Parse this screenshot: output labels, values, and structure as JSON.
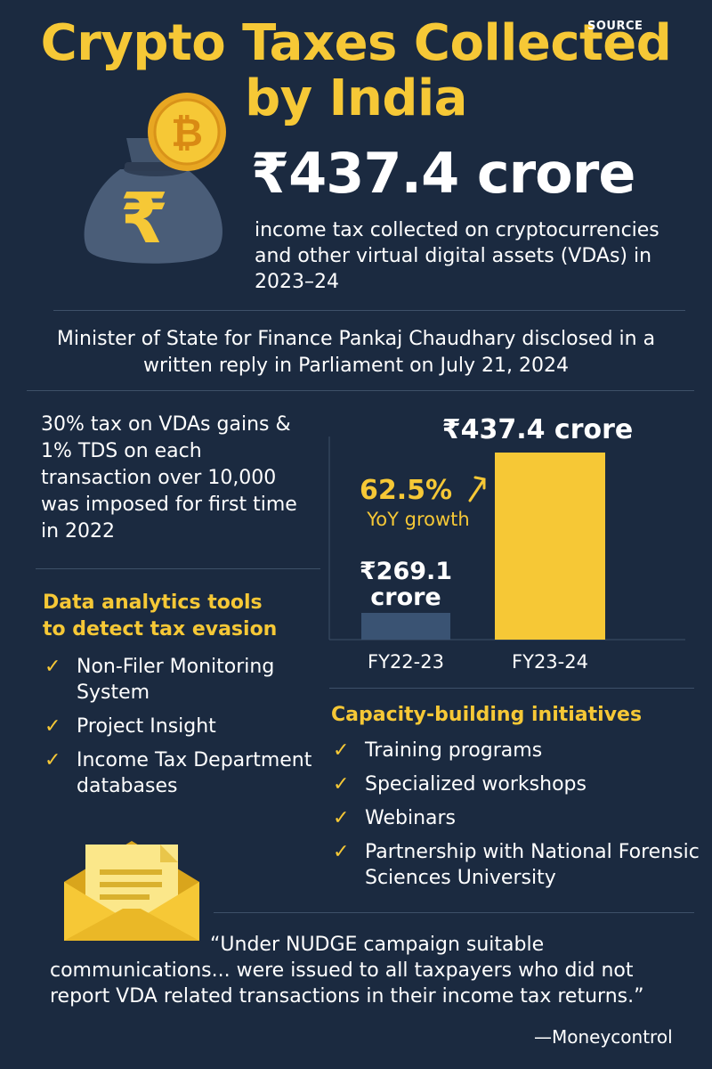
{
  "header": {
    "title_line1": "Crypto Taxes Collected",
    "title_line2": "by India",
    "source_tag": "SOURCE"
  },
  "headline": {
    "amount": "₹437.4 crore",
    "description": "income tax collected on cryptocurrencies and other virtual digital assets (VDAs) in 2023–24"
  },
  "minister_note": "Minister of State for Finance Pankaj Chaudhary disclosed in a written reply in Parliament on July 21, 2024",
  "tax_note": "30% tax on VDAs gains & 1% TDS on each transaction over 10,000 was imposed for first time in 2022",
  "analytics": {
    "heading_line1": "Data analytics tools",
    "heading_line2": "to detect tax evasion",
    "items": [
      "Non-Filer Monitoring System",
      "Project Insight",
      "Income Tax Department databases"
    ]
  },
  "capacity": {
    "heading": "Capacity-building initiatives",
    "items": [
      "Training programs",
      "Specialized workshops",
      "Webinars",
      "Partnership with National Forensic Sciences University"
    ]
  },
  "quote": {
    "text": "“Under NUDGE campaign suitable communications... were issued to all taxpayers who did not report VDA related transactions in their income tax returns.”",
    "source": "—Moneycontrol"
  },
  "icons": {
    "money_bag": "money-bag-rupee-icon",
    "coin": "bitcoin-coin-icon",
    "envelope": "envelope-letter-icon",
    "check": "check-icon",
    "growth_arrow": "arrow-up-right-icon"
  },
  "colors": {
    "background": "#1b2a40",
    "accent": "#f6c836",
    "bar_fy22": "#3a5373",
    "bar_fy23": "#f6c836"
  },
  "chart_data": {
    "type": "bar",
    "title": "",
    "xlabel": "",
    "ylabel": "",
    "categories": [
      "FY22-23",
      "FY23-24"
    ],
    "values": [
      269.1,
      437.4
    ],
    "unit": "crore",
    "data_labels": [
      "₹269.1 crore",
      "₹437.4 crore"
    ],
    "annotation": {
      "value": "62.5%",
      "label": "YoY growth"
    },
    "ylim": [
      0,
      437.4
    ],
    "grid": false,
    "legend": "none"
  }
}
